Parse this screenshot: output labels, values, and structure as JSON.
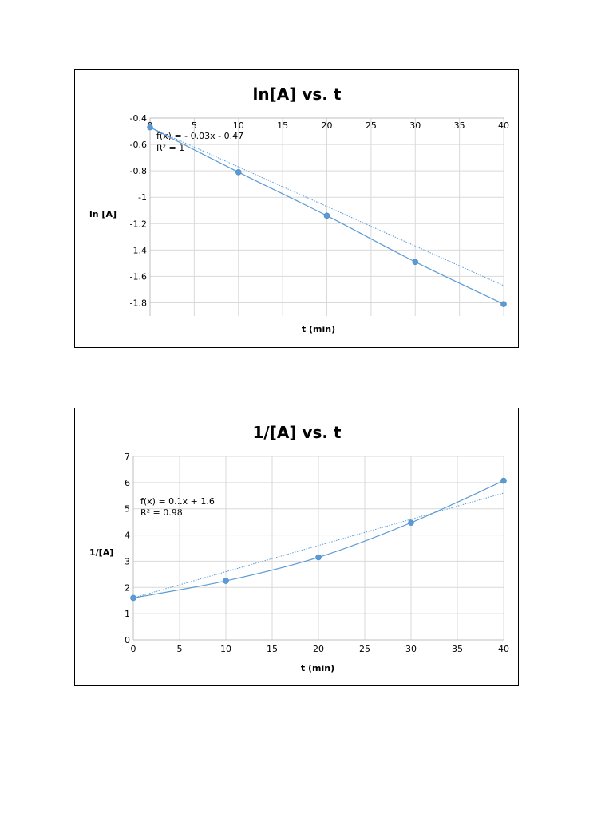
{
  "chart_data": [
    {
      "type": "scatter",
      "title": "ln[A] vs. t",
      "xlabel": "t (min)",
      "ylabel": "ln [A]",
      "x": [
        0,
        10,
        20,
        30,
        40
      ],
      "y": [
        -0.47,
        -0.81,
        -1.14,
        -1.49,
        -1.81
      ],
      "xlim": [
        0,
        40
      ],
      "ylim": [
        -1.9,
        -0.4
      ],
      "xticks": [
        0,
        5,
        10,
        15,
        20,
        25,
        30,
        35,
        40
      ],
      "yticks": [
        -0.4,
        -0.6,
        -0.8,
        -1,
        -1.2,
        -1.4,
        -1.6,
        -1.8
      ],
      "x_axis_position": "top",
      "grid": true,
      "trendline": {
        "type": "linear",
        "slope": -0.03,
        "intercept": -0.47
      },
      "equation": "f(x) =  - 0.03x - 0.47",
      "r_squared": "R² = 1",
      "color": "#5b9bd5"
    },
    {
      "type": "scatter",
      "title": "1/[A] vs. t",
      "xlabel": "t (min)",
      "ylabel": "1/[A]",
      "x": [
        0,
        10,
        20,
        30,
        40
      ],
      "y": [
        1.6,
        2.25,
        3.15,
        4.47,
        6.07
      ],
      "xlim": [
        0,
        40
      ],
      "ylim": [
        0,
        7
      ],
      "xticks": [
        0,
        5,
        10,
        15,
        20,
        25,
        30,
        35,
        40
      ],
      "yticks": [
        0,
        1,
        2,
        3,
        4,
        5,
        6,
        7
      ],
      "x_axis_position": "bottom",
      "grid": true,
      "trendline": {
        "type": "linear",
        "slope": 0.1,
        "intercept": 1.6
      },
      "equation": "f(x) = 0.1x + 1.6",
      "r_squared": "R² = 0.98",
      "color": "#5b9bd5"
    }
  ]
}
